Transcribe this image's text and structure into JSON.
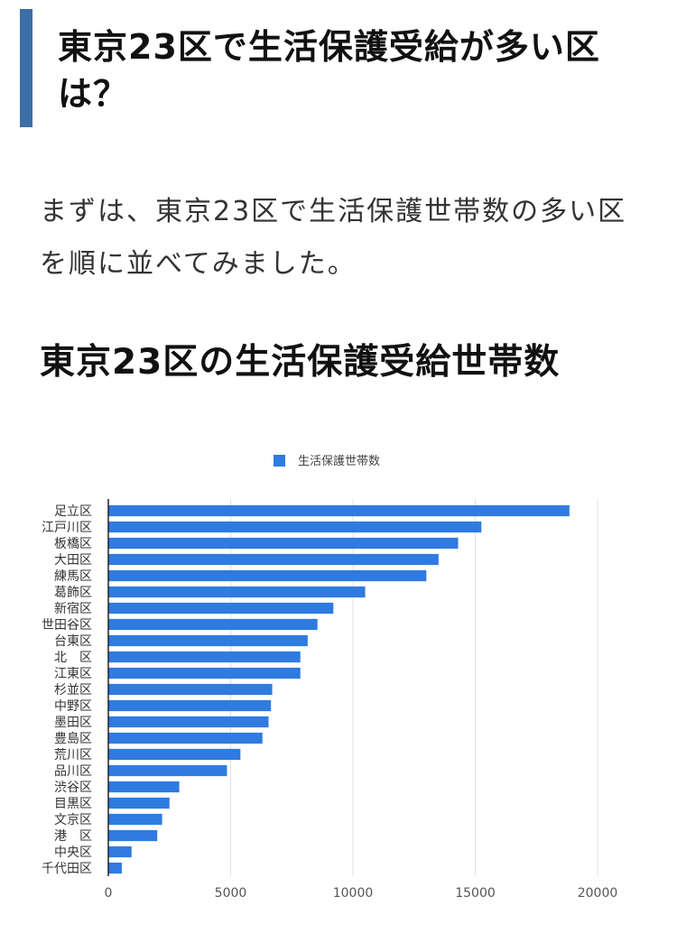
{
  "article": {
    "section_heading": "東京23区で生活保護受給が多い区は？",
    "intro": "まずは、東京23区で生活保護世帯数の多い区を順に並べてみました。",
    "chart_heading": "東京23区の生活保護受給世帯数"
  },
  "colors": {
    "accent_bar": "#3d6ea8",
    "bar_fill": "#2f7be0",
    "grid": "#e0e0e0",
    "axis": "#222222"
  },
  "chart_data": {
    "type": "bar",
    "orientation": "horizontal",
    "categories": [
      "足立区",
      "江戸川区",
      "板橋区",
      "大田区",
      "練馬区",
      "葛飾区",
      "新宿区",
      "世田谷区",
      "台東区",
      "北　区",
      "江東区",
      "杉並区",
      "中野区",
      "墨田区",
      "豊島区",
      "荒川区",
      "品川区",
      "渋谷区",
      "目黒区",
      "文京区",
      "港　区",
      "中央区",
      "千代田区"
    ],
    "series": [
      {
        "name": "生活保護世帯数",
        "values": [
          18850,
          15250,
          14300,
          13500,
          13000,
          10500,
          9200,
          8550,
          8150,
          7850,
          7850,
          6700,
          6650,
          6550,
          6300,
          5400,
          4850,
          2900,
          2500,
          2200,
          2000,
          950,
          550
        ]
      }
    ],
    "xlim": [
      0,
      20000
    ],
    "xticks": [
      "0",
      "5000",
      "10000",
      "15000",
      "20000"
    ],
    "grid": "vertical",
    "legend": "top-center"
  }
}
